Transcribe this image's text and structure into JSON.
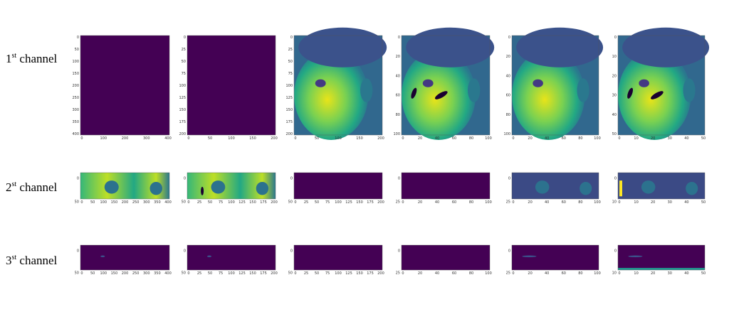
{
  "rows": [
    {
      "label": {
        "num": "1",
        "sup": "st",
        "rest": " channel"
      },
      "panels": [
        {
          "xticks": [
            "0",
            "100",
            "200",
            "300",
            "400"
          ],
          "yticks": [
            "0",
            "50",
            "100",
            "150",
            "200",
            "250",
            "300",
            "350",
            "400"
          ]
        },
        {
          "xticks": [
            "0",
            "50",
            "100",
            "150",
            "200"
          ],
          "yticks": [
            "0",
            "25",
            "50",
            "75",
            "100",
            "125",
            "150",
            "175",
            "200"
          ]
        },
        {
          "xticks": [
            "0",
            "50",
            "100",
            "150",
            "200"
          ],
          "yticks": [
            "0",
            "25",
            "50",
            "75",
            "100",
            "125",
            "150",
            "175",
            "200"
          ]
        },
        {
          "xticks": [
            "0",
            "20",
            "40",
            "60",
            "80",
            "100"
          ],
          "yticks": [
            "0",
            "20",
            "40",
            "60",
            "80",
            "100"
          ]
        },
        {
          "xticks": [
            "0",
            "20",
            "40",
            "60",
            "80",
            "100"
          ],
          "yticks": [
            "0",
            "20",
            "40",
            "60",
            "80",
            "100"
          ]
        },
        {
          "xticks": [
            "0",
            "10",
            "20",
            "30",
            "40",
            "50"
          ],
          "yticks": [
            "0",
            "10",
            "20",
            "30",
            "40",
            "50"
          ]
        }
      ]
    },
    {
      "label": {
        "num": "2",
        "sup": "st",
        "rest": " channel"
      },
      "panels": [
        {
          "xticks": [
            "0",
            "50",
            "100",
            "150",
            "200",
            "250",
            "300",
            "350",
            "400"
          ],
          "yticks": [
            "0",
            "50"
          ]
        },
        {
          "xticks": [
            "0",
            "25",
            "50",
            "75",
            "100",
            "125",
            "150",
            "175",
            "200"
          ],
          "yticks": [
            "0",
            "50"
          ]
        },
        {
          "xticks": [
            "0",
            "25",
            "50",
            "75",
            "100",
            "125",
            "150",
            "175",
            "200"
          ],
          "yticks": [
            "0",
            "50"
          ]
        },
        {
          "xticks": [
            "0",
            "20",
            "40",
            "60",
            "80",
            "100"
          ],
          "yticks": [
            "0",
            "25"
          ]
        },
        {
          "xticks": [
            "0",
            "20",
            "40",
            "60",
            "80",
            "100"
          ],
          "yticks": [
            "0",
            "25"
          ]
        },
        {
          "xticks": [
            "0",
            "10",
            "20",
            "30",
            "40",
            "50"
          ],
          "yticks": [
            "0",
            "10"
          ]
        }
      ]
    },
    {
      "label": {
        "num": "3",
        "sup": "st",
        "rest": " channel"
      },
      "panels": [
        {
          "xticks": [
            "0",
            "50",
            "100",
            "150",
            "200",
            "250",
            "300",
            "350",
            "400"
          ],
          "yticks": [
            "0",
            "50"
          ]
        },
        {
          "xticks": [
            "0",
            "25",
            "50",
            "75",
            "100",
            "125",
            "150",
            "175",
            "200"
          ],
          "yticks": [
            "0",
            "50"
          ]
        },
        {
          "xticks": [
            "0",
            "25",
            "50",
            "75",
            "100",
            "125",
            "150",
            "175",
            "200"
          ],
          "yticks": [
            "0",
            "50"
          ]
        },
        {
          "xticks": [
            "0",
            "20",
            "40",
            "60",
            "80",
            "100"
          ],
          "yticks": [
            "0",
            "25"
          ]
        },
        {
          "xticks": [
            "0",
            "20",
            "40",
            "60",
            "80",
            "100"
          ],
          "yticks": [
            "0",
            "25"
          ]
        },
        {
          "xticks": [
            "0",
            "10",
            "20",
            "30",
            "40",
            "50"
          ],
          "yticks": [
            "0",
            "10"
          ]
        }
      ]
    }
  ]
}
